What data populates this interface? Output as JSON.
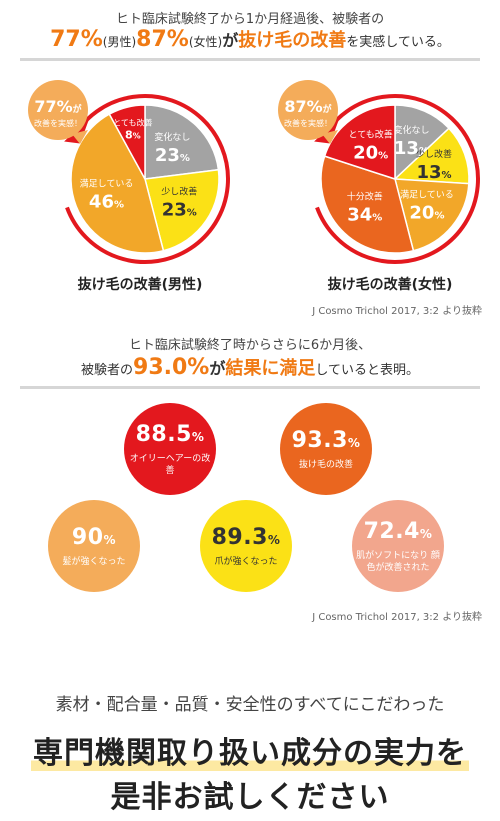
{
  "top": {
    "subtitle": "ヒト臨床試験終了から1か月経過後、被験者の",
    "headline": {
      "pct_male": "77%",
      "male_label": "(男性)",
      "pct_female": "87%",
      "female_label": "(女性)",
      "mid": "が",
      "emphasis": "抜け毛の改善",
      "tail": "を実感している。"
    }
  },
  "chart_data": [
    {
      "type": "pie",
      "title": "抜け毛の改善(男性)",
      "badge": {
        "value": "77%",
        "suffix": "が",
        "text": "改善を実感！"
      },
      "slices": [
        {
          "label": "変化なし",
          "value": 23,
          "color": "#a3a3a3"
        },
        {
          "label": "少し改善",
          "value": 23,
          "color": "#fbe116"
        },
        {
          "label": "満足している",
          "value": 46,
          "color": "#f2a729"
        },
        {
          "label": "とても改善",
          "value": 8,
          "color": "#e3181e"
        }
      ]
    },
    {
      "type": "pie",
      "title": "抜け毛の改善(女性)",
      "badge": {
        "value": "87%",
        "suffix": "が",
        "text": "改善を実感！"
      },
      "slices": [
        {
          "label": "変化なし",
          "value": 13,
          "color": "#a3a3a3"
        },
        {
          "label": "少し改善",
          "value": 13,
          "color": "#fbe116"
        },
        {
          "label": "満足している",
          "value": 20,
          "color": "#f2a729"
        },
        {
          "label": "十分改善",
          "value": 34,
          "color": "#ea661f"
        },
        {
          "label": "とても改善",
          "value": 20,
          "color": "#e3181e"
        }
      ]
    }
  ],
  "source1": "J Cosmo Trichol 2017, 3:2 より抜粋",
  "middle": {
    "subtitle": "ヒト臨床試験終了時からさらに6か月後、",
    "pre": "被験者の",
    "pct": "93.0%",
    "mid": "が",
    "emphasis": "結果に満足",
    "tail": "していると表明。"
  },
  "circles": [
    {
      "value": "88.5",
      "unit": "%",
      "label": "オイリーヘアーの改善",
      "color": "#e3181e",
      "text_color": "#ffffff"
    },
    {
      "value": "93.3",
      "unit": "%",
      "label": "抜け毛の改善",
      "color": "#ea661f",
      "text_color": "#ffffff"
    },
    {
      "value": "90",
      "unit": "%",
      "label": "髪が強くなった",
      "color": "#f4ac5a",
      "text_color": "#ffffff"
    },
    {
      "value": "89.3",
      "unit": "%",
      "label": "爪が強くなった",
      "color": "#fbe116",
      "text_color": "#333333"
    },
    {
      "value": "72.4",
      "unit": "%",
      "label": "肌がソフトになり 顔色が改善された",
      "color": "#f2a68d",
      "text_color": "#ffffff"
    }
  ],
  "source2": "J Cosmo Trichol 2017, 3:2 より抜粋",
  "footer": {
    "sub": "素材・配合量・品質・安全性のすべてにこだわった",
    "line1": "専門機関取り扱い成分の実力を",
    "line2": "是非お試しください"
  }
}
